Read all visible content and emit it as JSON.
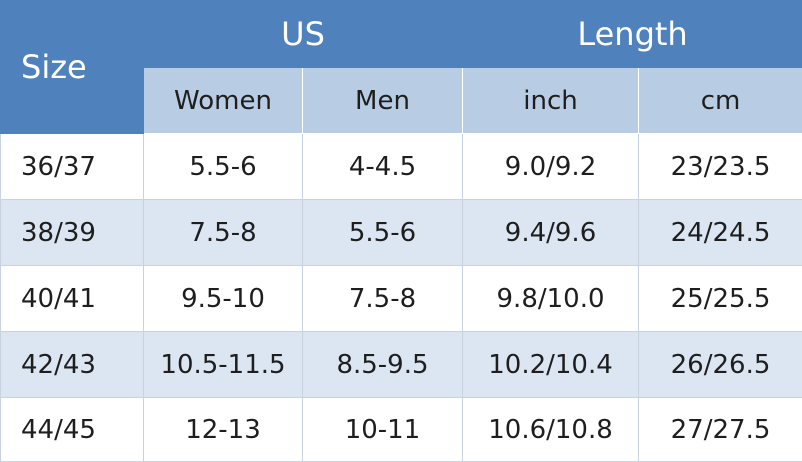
{
  "table": {
    "header": {
      "size": "Size",
      "us": "US",
      "length": "Length",
      "subheaders": [
        "Women",
        "Men",
        "inch",
        "cm"
      ]
    },
    "rows": [
      [
        "36/37",
        "5.5-6",
        "4-4.5",
        "9.0/9.2",
        "23/23.5"
      ],
      [
        "38/39",
        "7.5-8",
        "5.5-6",
        "9.4/9.6",
        "24/24.5"
      ],
      [
        "40/41",
        "9.5-10",
        "7.5-8",
        "9.8/10.0",
        "25/25.5"
      ],
      [
        "42/43",
        "10.5-11.5",
        "8.5-9.5",
        "10.2/10.4",
        "26/26.5"
      ],
      [
        "44/45",
        "12-13",
        "10-11",
        "10.6/10.8",
        "27/27.5"
      ]
    ]
  }
}
